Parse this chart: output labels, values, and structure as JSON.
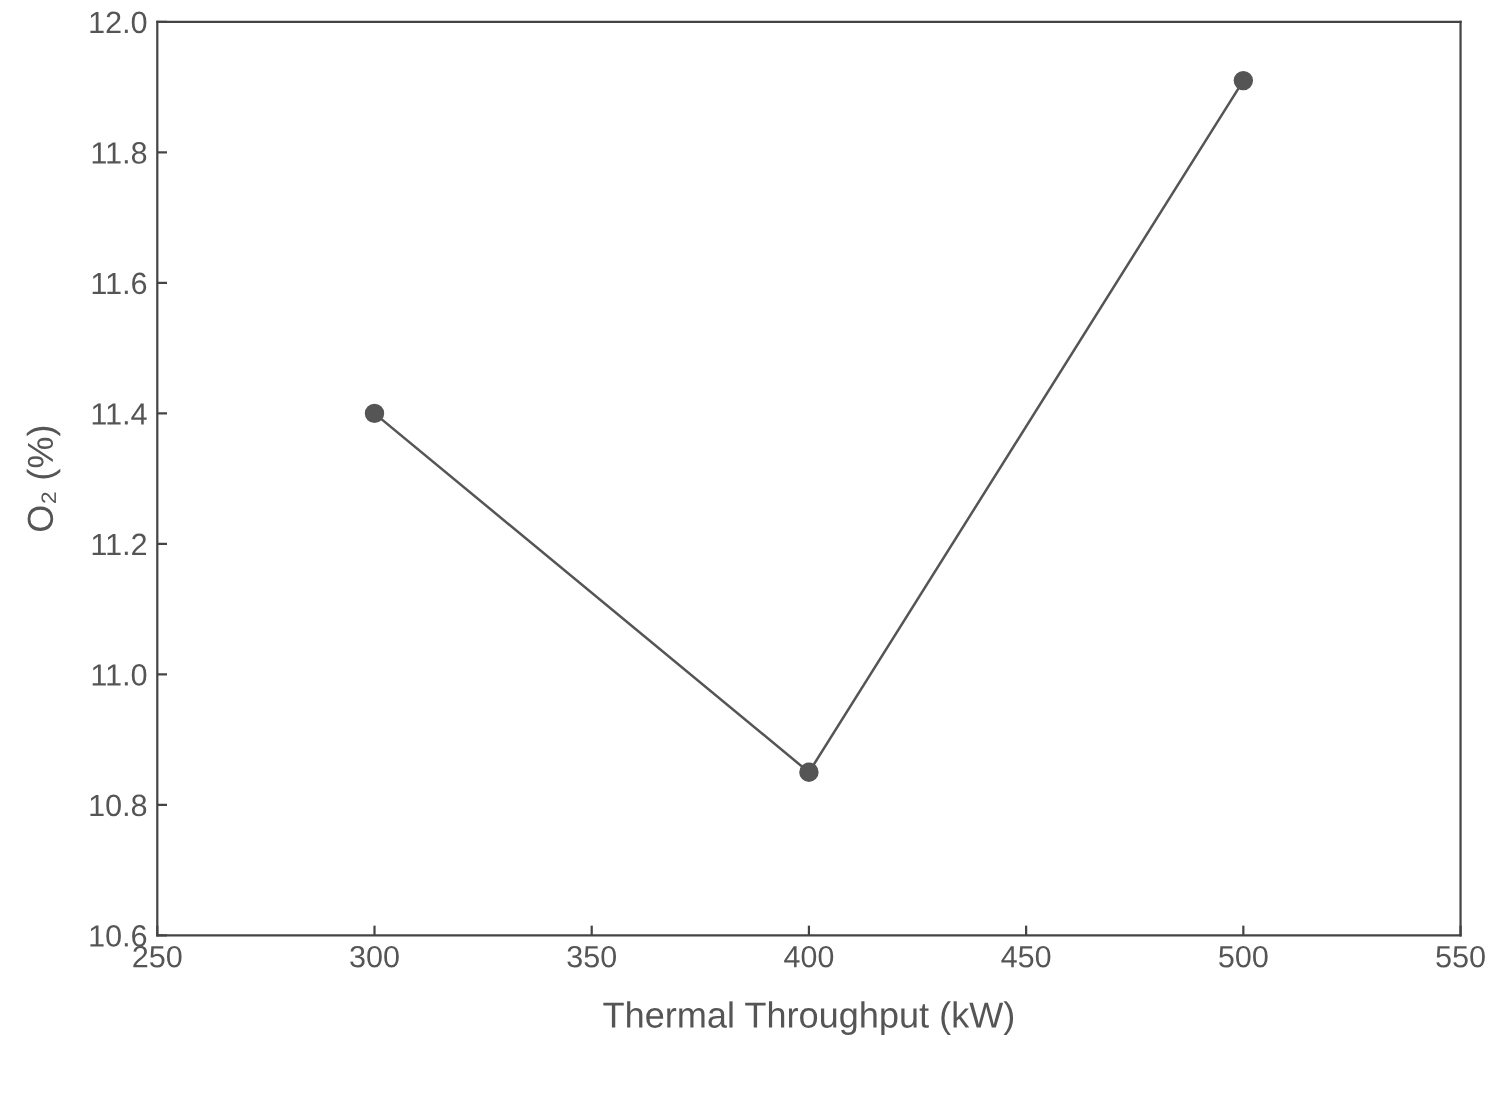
{
  "chart_data": {
    "type": "line",
    "xlabel": "Thermal Throughput (kW)",
    "ylabel": "O₂ (%)",
    "x": [
      300,
      400,
      500
    ],
    "series": [
      {
        "color": "#555555",
        "values": [
          11.4,
          10.85,
          11.91
        ]
      }
    ],
    "xlim": [
      250,
      550
    ],
    "xticks": [
      250,
      300,
      350,
      400,
      450,
      500,
      550
    ],
    "ylim": [
      10.6,
      12.0
    ],
    "yticks": [
      {
        "value": 10.6,
        "label": "10.6"
      },
      {
        "value": 10.8,
        "label": "10.8"
      },
      {
        "value": 11.0,
        "label": "11.0"
      },
      {
        "value": 11.2,
        "label": "11.2"
      },
      {
        "value": 11.4,
        "label": "11.4"
      },
      {
        "value": 11.6,
        "label": "11.6"
      },
      {
        "value": 11.8,
        "label": "11.8"
      },
      {
        "value": 12.0,
        "label": "12.0"
      }
    ],
    "marker": "circle",
    "line_style": "solid",
    "grid": false,
    "legend": false
  }
}
